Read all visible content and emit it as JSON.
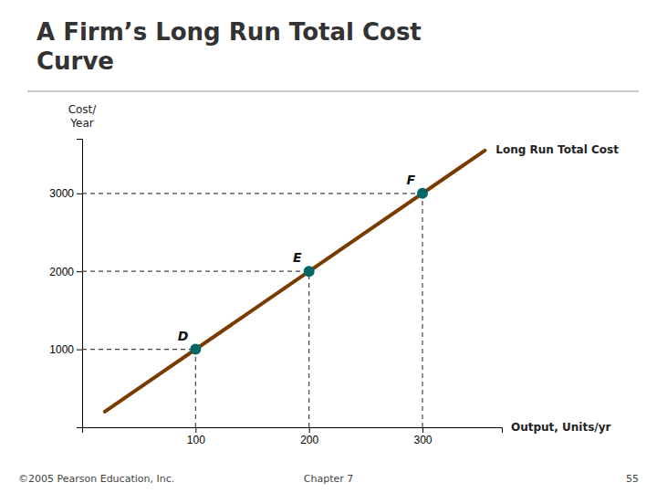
{
  "chart_data": {
    "type": "line",
    "title": "A Firm’s Long Run Total Cost\nCurve",
    "x_label": "Output, Units/yr",
    "y_label": "Cost/\nYear",
    "series": [
      {
        "name": "Long Run Total Cost",
        "type": "line",
        "color": "#7A3B00",
        "x": [
          20,
          355
        ],
        "values": [
          200,
          3550
        ]
      },
      {
        "type": "scatter",
        "marker": "circle",
        "color": "#006666",
        "x": [
          100,
          200,
          300
        ],
        "values": [
          1000,
          2000,
          3000
        ],
        "labels": [
          "D",
          "E",
          "F"
        ]
      }
    ],
    "xlim": [
      0,
      370
    ],
    "ylim": [
      0,
      3700
    ],
    "xticks": [
      100,
      200,
      300
    ],
    "yticks": [
      1000,
      2000,
      3000
    ],
    "grid": false,
    "annotations": [
      "©2005 Pearson Education, Inc.",
      "Chapter 7",
      "55"
    ]
  }
}
